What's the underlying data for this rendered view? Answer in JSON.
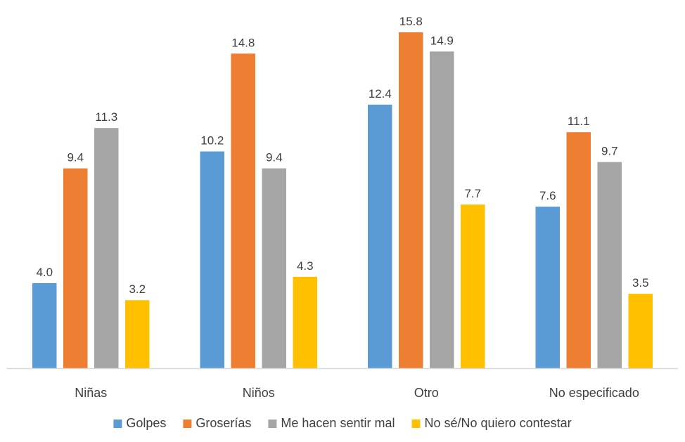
{
  "chart_data": {
    "type": "bar",
    "title": "",
    "xlabel": "",
    "ylabel": "",
    "categories": [
      "Niñas",
      "Niños",
      "Otro",
      "No especificado"
    ],
    "series": [
      {
        "name": "Golpes",
        "color": "#5B9BD5",
        "values": [
          4.0,
          10.2,
          12.4,
          7.6
        ]
      },
      {
        "name": "Groserías",
        "color": "#ED7D31",
        "values": [
          9.4,
          14.8,
          15.8,
          11.1
        ]
      },
      {
        "name": "Me hacen sentir mal",
        "color": "#A5A5A5",
        "values": [
          11.3,
          9.4,
          14.9,
          9.7
        ]
      },
      {
        "name": "No sé/No quiero contestar",
        "color": "#FFC000",
        "values": [
          3.2,
          4.3,
          7.7,
          3.5
        ]
      }
    ],
    "ylim": [
      0,
      16
    ],
    "grid": false,
    "legend": "bottom",
    "data_labels": true
  }
}
